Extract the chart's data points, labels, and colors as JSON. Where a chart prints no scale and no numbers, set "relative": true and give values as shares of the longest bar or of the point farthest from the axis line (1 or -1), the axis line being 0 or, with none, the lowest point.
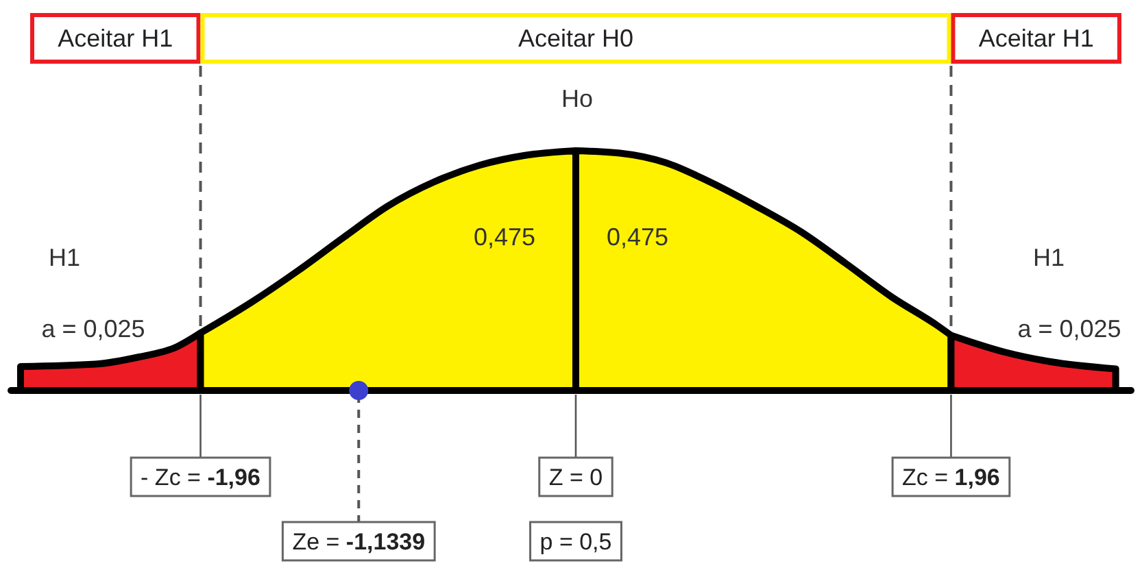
{
  "chart_data": {
    "type": "area",
    "relative": true,
    "xlim": [
      -2.95,
      2.9
    ],
    "tick_labels": "x",
    "xticks": [
      {
        "value": -1.96,
        "label": "- Zc = -1,96"
      },
      {
        "value": 0,
        "label": "Z = 0"
      },
      {
        "value": 1.96,
        "label": "Zc = 1,96"
      }
    ],
    "series": [
      {
        "color": "#ed1c24",
        "x": [
          -2.9,
          -2.51,
          -2.28,
          -2.09,
          -1.96
        ],
        "values": [
          0.1,
          0.11,
          0.14,
          0.18,
          0.24
        ]
      },
      {
        "color": "#fff200",
        "x": [
          -1.96,
          -1.69,
          -1.45,
          -1.21,
          -0.98,
          -0.74,
          -0.5,
          -0.27,
          0
        ],
        "values": [
          0.24,
          0.37,
          0.5,
          0.64,
          0.77,
          0.87,
          0.94,
          0.98,
          1
        ]
      },
      {
        "color": "#fff200",
        "x": [
          0,
          0.23,
          0.47,
          0.7,
          0.94,
          1.18,
          1.41,
          1.65,
          1.89,
          1.96
        ],
        "values": [
          1,
          0.99,
          0.95,
          0.87,
          0.77,
          0.66,
          0.53,
          0.39,
          0.27,
          0.23
        ]
      },
      {
        "color": "#ed1c24",
        "x": [
          1.96,
          2.24,
          2.48,
          2.82
        ],
        "values": [
          0.23,
          0.16,
          0.12,
          0.09
        ]
      },
      {
        "type": "scatter",
        "color": "#3b40d0",
        "x": [
          -1.1339
        ],
        "values": [
          0
        ]
      }
    ],
    "ref_lines": [
      {
        "axis": "x",
        "value": -1.96,
        "line_style": "dashed"
      },
      {
        "axis": "x",
        "value": 1.96,
        "line_style": "dashed"
      }
    ],
    "annotations": [
      "Aceitar H1",
      "Aceitar H0",
      "Aceitar H1",
      "Ho",
      "0,475",
      "0,475",
      "H1",
      "a = 0,025",
      "H1",
      "a = 0,025",
      "p = 0,5",
      {
        "text": "Ze = -1,1339",
        "x": -1.1339,
        "y": 0
      }
    ]
  }
}
